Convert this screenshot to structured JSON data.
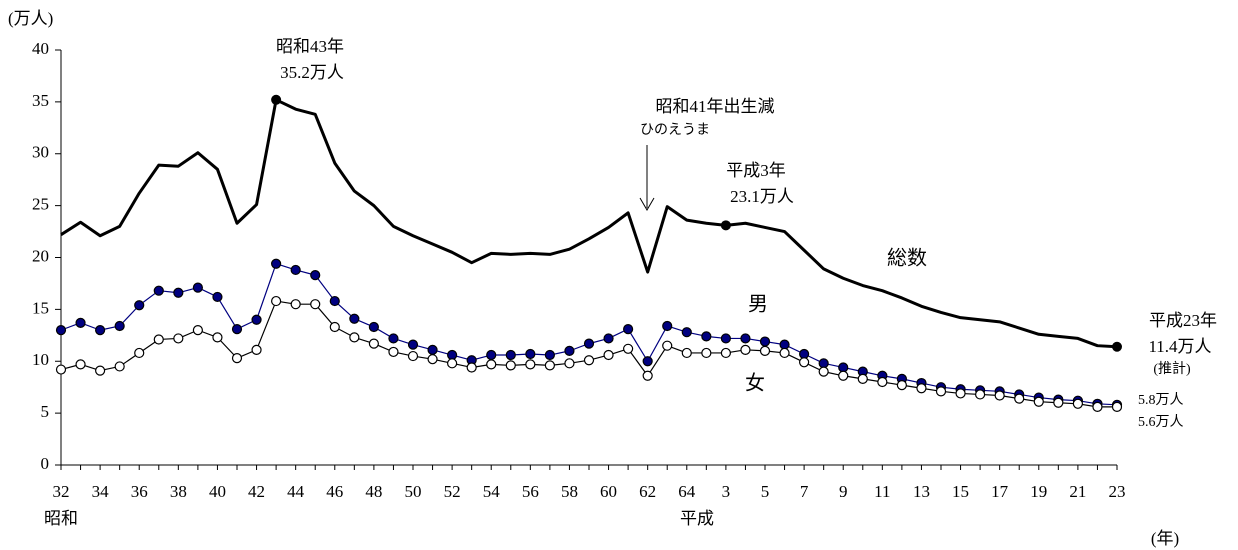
{
  "chart_data": {
    "type": "line",
    "y_unit": "(万人)",
    "x_unit": "(年)",
    "eras": [
      "昭和",
      "平成"
    ],
    "categories": [
      "32",
      null,
      "34",
      null,
      "36",
      null,
      "38",
      null,
      "40",
      null,
      "42",
      null,
      "44",
      null,
      "46",
      null,
      "48",
      null,
      "50",
      null,
      "52",
      null,
      "54",
      null,
      "56",
      null,
      "58",
      null,
      "60",
      null,
      "62",
      null,
      "64",
      null,
      "3",
      null,
      "5",
      null,
      "7",
      null,
      "9",
      null,
      "11",
      null,
      "13",
      null,
      "15",
      null,
      "17",
      null,
      "19",
      null,
      "21",
      null,
      "23"
    ],
    "ylim": [
      0,
      40
    ],
    "yticks": [
      0,
      5,
      10,
      15,
      20,
      25,
      30,
      35,
      40
    ],
    "series": [
      {
        "name": "総数",
        "color": "#000000",
        "marker": "none",
        "width": 3,
        "values": [
          22.2,
          23.4,
          22.1,
          23.0,
          26.2,
          28.9,
          28.8,
          30.1,
          28.5,
          23.3,
          25.1,
          35.2,
          34.3,
          33.8,
          29.1,
          26.4,
          25.0,
          23.0,
          22.1,
          21.3,
          20.5,
          19.5,
          20.4,
          20.3,
          20.4,
          20.3,
          20.8,
          21.8,
          22.9,
          24.3,
          18.6,
          24.9,
          23.6,
          23.3,
          23.1,
          23.3,
          22.9,
          22.5,
          20.7,
          18.9,
          18.0,
          17.3,
          16.8,
          16.1,
          15.3,
          14.7,
          14.2,
          14.0,
          13.8,
          13.2,
          12.6,
          12.4,
          12.2,
          11.5,
          11.4
        ]
      },
      {
        "name": "男",
        "color": "#000080",
        "marker": "filled",
        "width": 1.2,
        "values": [
          13.0,
          13.7,
          13.0,
          13.4,
          15.4,
          16.8,
          16.6,
          17.1,
          16.2,
          13.1,
          14.0,
          19.4,
          18.8,
          18.3,
          15.8,
          14.1,
          13.3,
          12.2,
          11.6,
          11.1,
          10.6,
          10.1,
          10.6,
          10.6,
          10.7,
          10.6,
          11.0,
          11.7,
          12.2,
          13.1,
          10.0,
          13.4,
          12.8,
          12.4,
          12.2,
          12.2,
          11.9,
          11.6,
          10.7,
          9.8,
          9.4,
          9.0,
          8.6,
          8.3,
          7.9,
          7.5,
          7.3,
          7.2,
          7.1,
          6.8,
          6.5,
          6.3,
          6.2,
          5.9,
          5.8
        ]
      },
      {
        "name": "女",
        "color": "#000000",
        "marker": "open",
        "width": 1.2,
        "values": [
          9.2,
          9.7,
          9.1,
          9.5,
          10.8,
          12.1,
          12.2,
          13.0,
          12.3,
          10.3,
          11.1,
          15.8,
          15.5,
          15.5,
          13.3,
          12.3,
          11.7,
          10.9,
          10.5,
          10.2,
          9.8,
          9.4,
          9.7,
          9.6,
          9.7,
          9.6,
          9.8,
          10.1,
          10.6,
          11.2,
          8.6,
          11.5,
          10.8,
          10.8,
          10.8,
          11.1,
          11.0,
          10.8,
          9.9,
          9.0,
          8.6,
          8.3,
          8.0,
          7.7,
          7.4,
          7.1,
          6.9,
          6.8,
          6.7,
          6.4,
          6.1,
          6.0,
          5.9,
          5.6,
          5.6
        ]
      }
    ],
    "annotations": [
      "昭和43年",
      "35.2万人",
      "昭和41年出生減",
      "ひのえうま",
      "平成3年",
      "23.1万人",
      "平成23年",
      "11.4万人",
      "(推計)",
      "5.8万人",
      "5.6万人"
    ]
  }
}
